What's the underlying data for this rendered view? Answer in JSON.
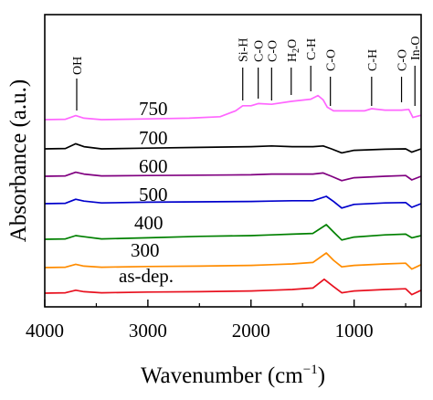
{
  "chart_data": {
    "type": "line",
    "xlabel": "Wavenumber (cm",
    "xlabel_sup": "−1",
    "xlabel_end": ")",
    "ylabel": "Absorbance (a.u.)",
    "xlim": [
      4000,
      350
    ],
    "x_reversed": true,
    "x_ticks": [
      4000,
      3000,
      2000,
      1000
    ],
    "y_ticks_shown": false,
    "grid": false,
    "peaks": [
      {
        "label": "OH",
        "x": 3690
      },
      {
        "label": "Si-H",
        "x": 2080
      },
      {
        "label": "C-O",
        "x": 1930
      },
      {
        "label": "C-O",
        "x": 1800
      },
      {
        "label": "H",
        "sub": "2",
        "label_end": "O",
        "x": 1610
      },
      {
        "label": "C-H",
        "x": 1420
      },
      {
        "label": "C-O",
        "x": 1230
      },
      {
        "label": "C-H",
        "x": 830
      },
      {
        "label": "C-O",
        "x": 540
      },
      {
        "label": "In-O",
        "x": 410
      }
    ],
    "series": [
      {
        "name": "750",
        "color": "#ff66ff",
        "points": [
          [
            4000,
            0.0
          ],
          [
            3800,
            0.05
          ],
          [
            3700,
            0.55
          ],
          [
            3620,
            0.2
          ],
          [
            3450,
            0.0
          ],
          [
            3000,
            0.1
          ],
          [
            2600,
            0.2
          ],
          [
            2300,
            0.4
          ],
          [
            2150,
            1.2
          ],
          [
            2080,
            1.9
          ],
          [
            2000,
            1.9
          ],
          [
            1930,
            2.2
          ],
          [
            1800,
            2.1
          ],
          [
            1610,
            2.5
          ],
          [
            1420,
            2.8
          ],
          [
            1350,
            3.3
          ],
          [
            1300,
            2.7
          ],
          [
            1260,
            1.7
          ],
          [
            1200,
            1.2
          ],
          [
            1100,
            1.2
          ],
          [
            900,
            1.2
          ],
          [
            830,
            1.5
          ],
          [
            700,
            1.3
          ],
          [
            540,
            1.3
          ],
          [
            470,
            1.4
          ],
          [
            430,
            0.3
          ],
          [
            350,
            0.6
          ]
        ]
      },
      {
        "name": "700",
        "color": "#000000",
        "points": [
          [
            4000,
            0.0
          ],
          [
            3800,
            0.05
          ],
          [
            3700,
            0.7
          ],
          [
            3620,
            0.3
          ],
          [
            3450,
            0.0
          ],
          [
            3000,
            0.1
          ],
          [
            2500,
            0.2
          ],
          [
            2000,
            0.3
          ],
          [
            1800,
            0.4
          ],
          [
            1600,
            0.3
          ],
          [
            1400,
            0.3
          ],
          [
            1300,
            0.4
          ],
          [
            1220,
            0.0
          ],
          [
            1120,
            -0.55
          ],
          [
            1000,
            -0.2
          ],
          [
            700,
            -0.05
          ],
          [
            500,
            0.0
          ],
          [
            440,
            -0.45
          ],
          [
            350,
            0.0
          ]
        ]
      },
      {
        "name": "600",
        "color": "#800080",
        "points": [
          [
            4000,
            0.0
          ],
          [
            3800,
            0.05
          ],
          [
            3700,
            0.55
          ],
          [
            3620,
            0.3
          ],
          [
            3450,
            0.05
          ],
          [
            3000,
            0.1
          ],
          [
            2500,
            0.15
          ],
          [
            2000,
            0.2
          ],
          [
            1800,
            0.3
          ],
          [
            1600,
            0.3
          ],
          [
            1400,
            0.3
          ],
          [
            1300,
            0.45
          ],
          [
            1220,
            0.0
          ],
          [
            1120,
            -0.6
          ],
          [
            1000,
            -0.2
          ],
          [
            700,
            0.0
          ],
          [
            500,
            0.1
          ],
          [
            440,
            -0.5
          ],
          [
            350,
            0.0
          ]
        ]
      },
      {
        "name": "500",
        "color": "#0000cc",
        "points": [
          [
            4000,
            0.0
          ],
          [
            3800,
            0.05
          ],
          [
            3700,
            0.6
          ],
          [
            3620,
            0.35
          ],
          [
            3450,
            0.1
          ],
          [
            3000,
            0.2
          ],
          [
            2500,
            0.25
          ],
          [
            2000,
            0.3
          ],
          [
            1800,
            0.35
          ],
          [
            1600,
            0.4
          ],
          [
            1400,
            0.4
          ],
          [
            1270,
            1.0
          ],
          [
            1200,
            0.3
          ],
          [
            1120,
            -0.6
          ],
          [
            1000,
            -0.1
          ],
          [
            700,
            0.1
          ],
          [
            500,
            0.15
          ],
          [
            440,
            -0.5
          ],
          [
            350,
            0.0
          ]
        ]
      },
      {
        "name": "400",
        "color": "#008000",
        "points": [
          [
            4000,
            0.0
          ],
          [
            3800,
            0.05
          ],
          [
            3700,
            0.5
          ],
          [
            3620,
            0.35
          ],
          [
            3450,
            0.05
          ],
          [
            3000,
            0.2
          ],
          [
            2500,
            0.4
          ],
          [
            2000,
            0.5
          ],
          [
            1800,
            0.6
          ],
          [
            1600,
            0.7
          ],
          [
            1400,
            0.8
          ],
          [
            1270,
            2.0
          ],
          [
            1200,
            1.0
          ],
          [
            1120,
            -0.1
          ],
          [
            1000,
            0.3
          ],
          [
            700,
            0.6
          ],
          [
            500,
            0.7
          ],
          [
            440,
            0.2
          ],
          [
            350,
            0.5
          ]
        ]
      },
      {
        "name": "300",
        "color": "#ff8c00",
        "points": [
          [
            4000,
            0.0
          ],
          [
            3800,
            0.05
          ],
          [
            3700,
            0.45
          ],
          [
            3620,
            0.2
          ],
          [
            3450,
            0.05
          ],
          [
            3000,
            0.15
          ],
          [
            2500,
            0.2
          ],
          [
            2000,
            0.3
          ],
          [
            1800,
            0.4
          ],
          [
            1600,
            0.5
          ],
          [
            1400,
            0.7
          ],
          [
            1270,
            2.0
          ],
          [
            1200,
            1.0
          ],
          [
            1120,
            0.1
          ],
          [
            1000,
            0.3
          ],
          [
            700,
            0.5
          ],
          [
            500,
            0.6
          ],
          [
            440,
            -0.2
          ],
          [
            350,
            0.4
          ]
        ]
      },
      {
        "name": "as-dep.",
        "color": "#e8111f",
        "points": [
          [
            4000,
            0.0
          ],
          [
            3800,
            0.05
          ],
          [
            3700,
            0.4
          ],
          [
            3620,
            0.2
          ],
          [
            3450,
            0.05
          ],
          [
            3000,
            0.15
          ],
          [
            2500,
            0.2
          ],
          [
            2000,
            0.3
          ],
          [
            1800,
            0.4
          ],
          [
            1600,
            0.5
          ],
          [
            1400,
            0.7
          ],
          [
            1290,
            1.9
          ],
          [
            1200,
            0.9
          ],
          [
            1120,
            0.05
          ],
          [
            1000,
            0.3
          ],
          [
            700,
            0.5
          ],
          [
            500,
            0.6
          ],
          [
            440,
            -0.2
          ],
          [
            350,
            0.4
          ]
        ]
      }
    ]
  }
}
